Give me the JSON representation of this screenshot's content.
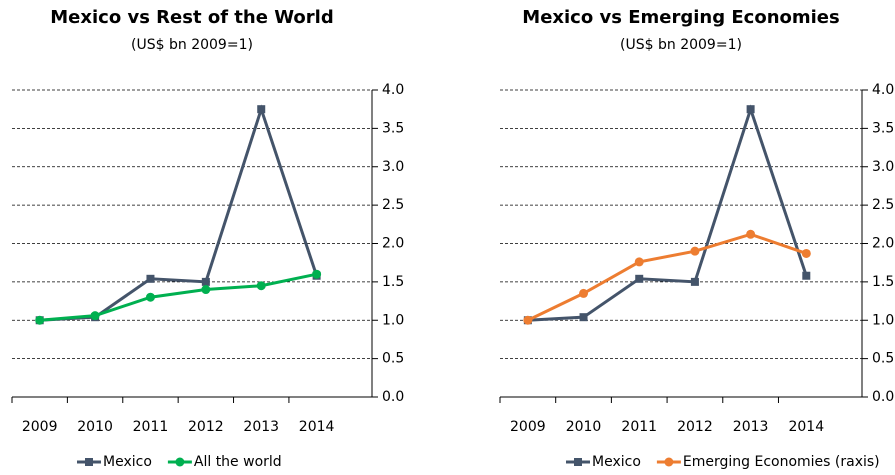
{
  "chart_data": [
    {
      "type": "line",
      "title": "Mexico vs Rest of the World",
      "subtitle": "(US$ bn 2009=1)",
      "categories": [
        "2009",
        "2010",
        "2011",
        "2012",
        "2013",
        "2014"
      ],
      "series": [
        {
          "name": "Mexico",
          "color": "#44546a",
          "marker": "square",
          "values": [
            1.0,
            1.04,
            1.54,
            1.5,
            3.75,
            1.58
          ]
        },
        {
          "name": "All the world",
          "color": "#00b050",
          "marker": "circle",
          "values": [
            1.0,
            1.06,
            1.3,
            1.4,
            1.45,
            1.6
          ]
        }
      ],
      "ylim": [
        0,
        4
      ],
      "yticks": [
        {
          "value": 0,
          "label": "0.0"
        },
        0.5,
        {
          "value": 1,
          "label": "1.0"
        },
        1.5,
        {
          "value": 2,
          "label": "2.0"
        },
        2.5,
        {
          "value": 3,
          "label": "3.0"
        },
        3.5,
        {
          "value": 4,
          "label": "4.0"
        }
      ],
      "grid": true,
      "legend": "bottom"
    },
    {
      "type": "line",
      "title": "Mexico vs Emerging Economies",
      "subtitle": "(US$ bn 2009=1)",
      "categories": [
        "2009",
        "2010",
        "2011",
        "2012",
        "2013",
        "2014"
      ],
      "series": [
        {
          "name": "Mexico",
          "color": "#44546a",
          "marker": "square",
          "values": [
            1.0,
            1.04,
            1.54,
            1.5,
            3.75,
            1.58
          ]
        },
        {
          "name": "Emerging Economies (raxis)",
          "color": "#ed7d31",
          "marker": "circle",
          "values": [
            1.0,
            1.35,
            1.76,
            1.9,
            2.12,
            1.87
          ]
        }
      ],
      "ylim": [
        0,
        4
      ],
      "yticks": [
        {
          "value": 0,
          "label": "0.0"
        },
        0.5,
        {
          "value": 1,
          "label": "1.0"
        },
        1.5,
        {
          "value": 2,
          "label": "2.0"
        },
        2.5,
        {
          "value": 3,
          "label": "3.0"
        },
        3.5,
        {
          "value": 4,
          "label": "4.0"
        }
      ],
      "grid": true,
      "legend": "bottom"
    }
  ]
}
